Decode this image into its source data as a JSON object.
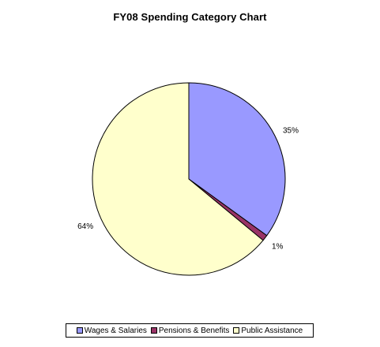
{
  "chart_data": {
    "type": "pie",
    "title": "FY08 Spending Category Chart",
    "categories": [
      "Wages & Salaries",
      "Pensions & Benefits",
      "Public Assistance"
    ],
    "values": [
      35,
      1,
      64
    ],
    "labels": [
      "35%",
      "1%",
      "64%"
    ],
    "colors": [
      "#9999ff",
      "#993366",
      "#ffffcc"
    ],
    "start_angle_deg": 90,
    "direction": "clockwise",
    "legend_position": "bottom"
  }
}
